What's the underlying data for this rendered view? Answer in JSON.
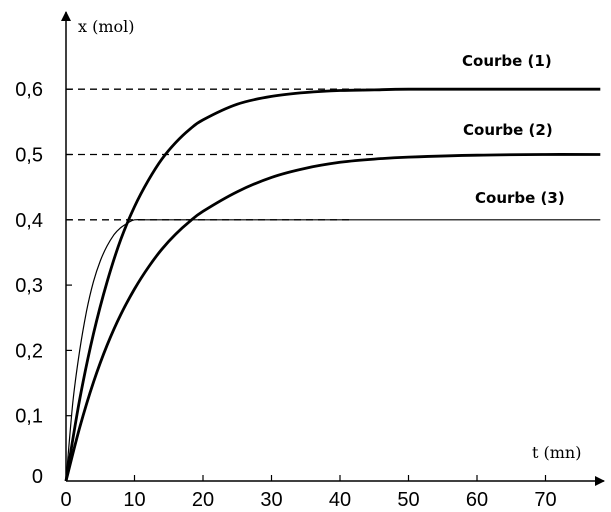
{
  "chart_data": {
    "type": "line",
    "xlabel": "t (mn)",
    "ylabel": "x (mol)",
    "xlim": [
      0,
      80
    ],
    "ylim": [
      0,
      0.65
    ],
    "x_ticks": [
      0,
      10,
      20,
      30,
      40,
      50,
      60,
      70
    ],
    "x_tick_labels": [
      "0",
      "10",
      "20",
      "30",
      "40",
      "50",
      "60",
      "70"
    ],
    "y_ticks": [
      0,
      0.1,
      0.2,
      0.3,
      0.4,
      0.5,
      0.6
    ],
    "y_tick_labels": [
      "0",
      "0,1",
      "0,2",
      "0,3",
      "0,4",
      "0,5",
      "0,6"
    ],
    "grid": false,
    "legend": "inline labels above each curve's plateau",
    "series": [
      {
        "name": "Courbe (1)",
        "x": [
          0,
          2,
          4,
          6,
          8,
          10,
          12,
          14,
          16,
          18,
          20,
          25,
          30,
          35,
          40,
          45,
          50,
          60,
          70,
          78
        ],
        "y": [
          0,
          0.125,
          0.225,
          0.305,
          0.37,
          0.42,
          0.46,
          0.493,
          0.518,
          0.538,
          0.553,
          0.577,
          0.589,
          0.595,
          0.598,
          0.599,
          0.6,
          0.6,
          0.6,
          0.6
        ],
        "asymptote": 0.6,
        "line_weight": "bold"
      },
      {
        "name": "Courbe (2)",
        "x": [
          0,
          2,
          4,
          6,
          8,
          10,
          12,
          14,
          16,
          18,
          20,
          25,
          30,
          35,
          40,
          45,
          50,
          60,
          70,
          78
        ],
        "y": [
          0,
          0.082,
          0.151,
          0.208,
          0.255,
          0.294,
          0.327,
          0.355,
          0.378,
          0.397,
          0.413,
          0.443,
          0.465,
          0.479,
          0.488,
          0.493,
          0.496,
          0.499,
          0.5,
          0.5
        ],
        "asymptote": 0.5,
        "line_weight": "bold"
      },
      {
        "name": "Courbe (3)",
        "x": [
          0,
          1,
          2,
          3,
          4,
          5,
          6,
          7,
          8,
          9,
          10,
          12,
          15,
          20,
          30,
          40,
          50,
          60,
          70,
          78
        ],
        "y": [
          0,
          0.12,
          0.2,
          0.26,
          0.305,
          0.337,
          0.36,
          0.377,
          0.388,
          0.395,
          0.4,
          0.4,
          0.4,
          0.4,
          0.4,
          0.4,
          0.4,
          0.4,
          0.4,
          0.4
        ],
        "asymptote": 0.4,
        "line_weight": "thin"
      }
    ],
    "dashed_reference_lines": [
      0.6,
      0.5,
      0.4
    ]
  }
}
